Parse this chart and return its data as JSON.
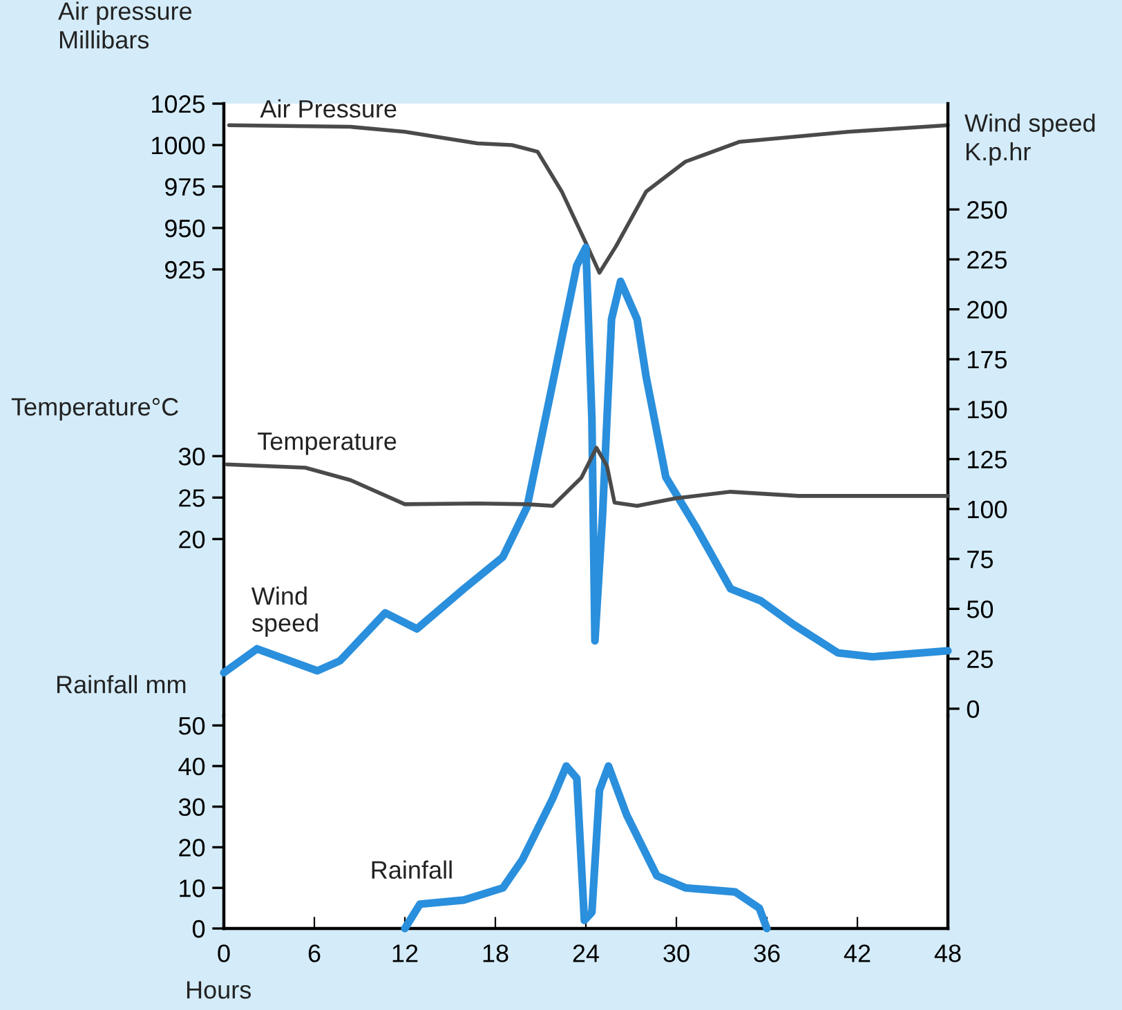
{
  "chart_data": [
    {
      "type": "line",
      "ylabel": "Air pressure\nMillibars",
      "y2label": "Wind speed\nK.p.hr",
      "y3label": "Temperature°C",
      "xlim": [
        0,
        48
      ],
      "tick_labels": "y",
      "ylim": [
        655.8,
        1025
      ],
      "yticks": [
        925,
        950,
        975,
        1000,
        1025
      ],
      "y2lim": [
        -3.5,
        303
      ],
      "y2ticks": [
        0,
        25,
        50,
        75,
        100,
        125,
        150,
        175,
        200,
        225,
        250
      ],
      "y3lim": [
        -1.3,
        72.5
      ],
      "y3ticks": [
        20,
        25,
        30
      ],
      "grid": false,
      "legend": false,
      "marker": "none",
      "line_style": "solid",
      "series": [
        {
          "name": "Air Pressure",
          "axis": "y",
          "color": "#4a4a4a",
          "x": [
            0.35,
            8.4,
            12,
            16.8,
            19.1,
            20.8,
            22.4,
            24.1,
            24.9,
            26.0,
            28.0,
            30.6,
            34.2,
            41.4,
            48
          ],
          "values": [
            1012,
            1011,
            1008,
            1001,
            1000,
            996,
            972,
            939,
            923,
            939,
            972,
            990,
            1002,
            1008,
            1012
          ]
        },
        {
          "name": "Temperature",
          "axis": "y3",
          "color": "#4a4a4a",
          "x": [
            0.2,
            5.4,
            8.4,
            12.0,
            16.8,
            20.1,
            21.8,
            23.7,
            24.7,
            25.4,
            25.9,
            27.4,
            29.9,
            33.6,
            38.1,
            48
          ],
          "values": [
            29.0,
            28.6,
            27.1,
            24.2,
            24.3,
            24.2,
            24.0,
            27.4,
            31.0,
            28.8,
            24.4,
            24.0,
            24.9,
            25.7,
            25.2,
            25.2
          ]
        },
        {
          "name": "Wind\nspeed",
          "axis": "y2",
          "color": "#2a8fdc",
          "x": [
            0,
            2.2,
            6.2,
            7.7,
            10.7,
            12.8,
            15.9,
            18.5,
            20.1,
            21.8,
            23.4,
            24.0,
            24.4,
            24.6,
            25.1,
            25.7,
            26.3,
            27.4,
            28.0,
            29.3,
            31.3,
            33.6,
            35.6,
            37.8,
            40.7,
            43.0,
            48
          ],
          "values": [
            18,
            30,
            19,
            24,
            48,
            40,
            60,
            76,
            101,
            163,
            222,
            231,
            145,
            34,
            96,
            195,
            214,
            195,
            166,
            116,
            91,
            60,
            54,
            42,
            28,
            26,
            29
          ]
        }
      ]
    },
    {
      "type": "line",
      "ylabel": "Rainfall mm",
      "xlabel": "Hours",
      "xlim": [
        0,
        48
      ],
      "xticks": [
        0,
        6,
        12,
        18,
        24,
        30,
        36,
        42,
        48
      ],
      "ylim": [
        0,
        52.4
      ],
      "yticks": [
        0,
        10,
        20,
        30,
        40,
        50
      ],
      "grid": false,
      "legend": false,
      "marker": "none",
      "line_style": "solid",
      "series": [
        {
          "name": "Rainfall",
          "color": "#2a8fdc",
          "x": [
            12,
            13.0,
            15.9,
            18.5,
            19.8,
            21.8,
            22.7,
            23.4,
            23.9,
            24.4,
            24.9,
            25.5,
            26.7,
            28.7,
            30.6,
            33.9,
            35.5,
            36
          ],
          "values": [
            0,
            6,
            7,
            10,
            17,
            32,
            40,
            37,
            2,
            4,
            34,
            40,
            28,
            13,
            10,
            9,
            5,
            0
          ]
        }
      ]
    }
  ]
}
